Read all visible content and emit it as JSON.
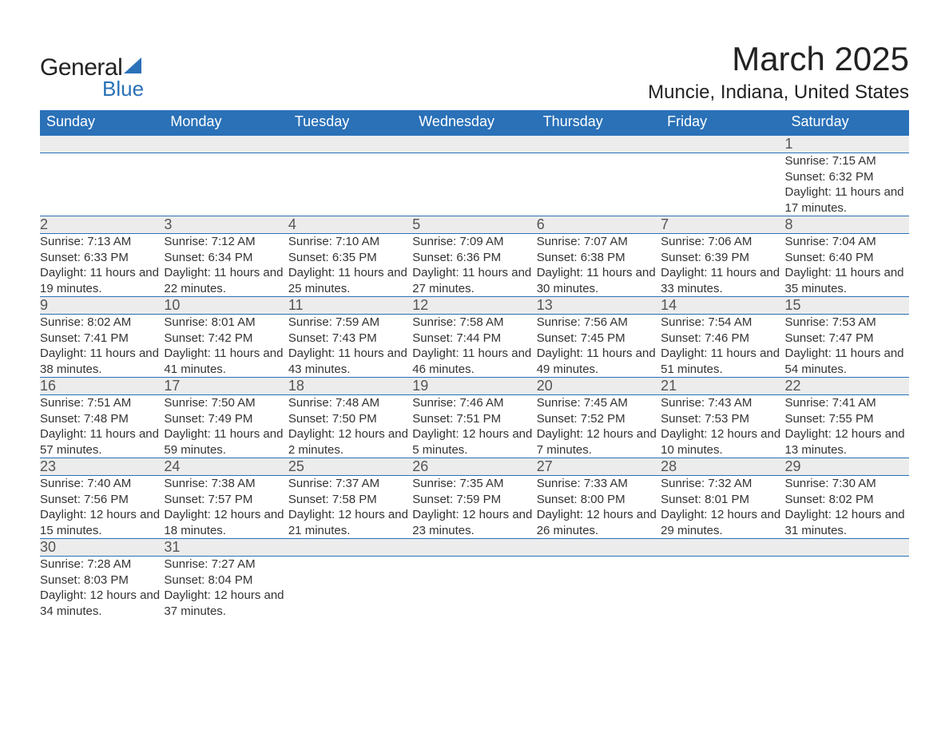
{
  "logo": {
    "word1": "General",
    "word2": "Blue",
    "sail_color": "#2a71b8"
  },
  "title": "March 2025",
  "location": "Muncie, Indiana, United States",
  "colors": {
    "header_bg": "#2a71b8",
    "header_text": "#ffffff",
    "daynum_bg": "#ececec",
    "border": "#2a71b8",
    "text": "#333333",
    "page_bg": "#ffffff"
  },
  "fonts": {
    "title_size_pt": 32,
    "location_size_pt": 18,
    "header_size_pt": 14,
    "daynum_size_pt": 14,
    "detail_size_pt": 11
  },
  "layout": {
    "columns": 7,
    "start_day_index": 6,
    "days_in_month": 31
  },
  "day_headers": [
    "Sunday",
    "Monday",
    "Tuesday",
    "Wednesday",
    "Thursday",
    "Friday",
    "Saturday"
  ],
  "weeks": [
    [
      null,
      null,
      null,
      null,
      null,
      null,
      {
        "n": "1",
        "sunrise": "7:15 AM",
        "sunset": "6:32 PM",
        "daylight": "11 hours and 17 minutes."
      }
    ],
    [
      {
        "n": "2",
        "sunrise": "7:13 AM",
        "sunset": "6:33 PM",
        "daylight": "11 hours and 19 minutes."
      },
      {
        "n": "3",
        "sunrise": "7:12 AM",
        "sunset": "6:34 PM",
        "daylight": "11 hours and 22 minutes."
      },
      {
        "n": "4",
        "sunrise": "7:10 AM",
        "sunset": "6:35 PM",
        "daylight": "11 hours and 25 minutes."
      },
      {
        "n": "5",
        "sunrise": "7:09 AM",
        "sunset": "6:36 PM",
        "daylight": "11 hours and 27 minutes."
      },
      {
        "n": "6",
        "sunrise": "7:07 AM",
        "sunset": "6:38 PM",
        "daylight": "11 hours and 30 minutes."
      },
      {
        "n": "7",
        "sunrise": "7:06 AM",
        "sunset": "6:39 PM",
        "daylight": "11 hours and 33 minutes."
      },
      {
        "n": "8",
        "sunrise": "7:04 AM",
        "sunset": "6:40 PM",
        "daylight": "11 hours and 35 minutes."
      }
    ],
    [
      {
        "n": "9",
        "sunrise": "8:02 AM",
        "sunset": "7:41 PM",
        "daylight": "11 hours and 38 minutes."
      },
      {
        "n": "10",
        "sunrise": "8:01 AM",
        "sunset": "7:42 PM",
        "daylight": "11 hours and 41 minutes."
      },
      {
        "n": "11",
        "sunrise": "7:59 AM",
        "sunset": "7:43 PM",
        "daylight": "11 hours and 43 minutes."
      },
      {
        "n": "12",
        "sunrise": "7:58 AM",
        "sunset": "7:44 PM",
        "daylight": "11 hours and 46 minutes."
      },
      {
        "n": "13",
        "sunrise": "7:56 AM",
        "sunset": "7:45 PM",
        "daylight": "11 hours and 49 minutes."
      },
      {
        "n": "14",
        "sunrise": "7:54 AM",
        "sunset": "7:46 PM",
        "daylight": "11 hours and 51 minutes."
      },
      {
        "n": "15",
        "sunrise": "7:53 AM",
        "sunset": "7:47 PM",
        "daylight": "11 hours and 54 minutes."
      }
    ],
    [
      {
        "n": "16",
        "sunrise": "7:51 AM",
        "sunset": "7:48 PM",
        "daylight": "11 hours and 57 minutes."
      },
      {
        "n": "17",
        "sunrise": "7:50 AM",
        "sunset": "7:49 PM",
        "daylight": "11 hours and 59 minutes."
      },
      {
        "n": "18",
        "sunrise": "7:48 AM",
        "sunset": "7:50 PM",
        "daylight": "12 hours and 2 minutes."
      },
      {
        "n": "19",
        "sunrise": "7:46 AM",
        "sunset": "7:51 PM",
        "daylight": "12 hours and 5 minutes."
      },
      {
        "n": "20",
        "sunrise": "7:45 AM",
        "sunset": "7:52 PM",
        "daylight": "12 hours and 7 minutes."
      },
      {
        "n": "21",
        "sunrise": "7:43 AM",
        "sunset": "7:53 PM",
        "daylight": "12 hours and 10 minutes."
      },
      {
        "n": "22",
        "sunrise": "7:41 AM",
        "sunset": "7:55 PM",
        "daylight": "12 hours and 13 minutes."
      }
    ],
    [
      {
        "n": "23",
        "sunrise": "7:40 AM",
        "sunset": "7:56 PM",
        "daylight": "12 hours and 15 minutes."
      },
      {
        "n": "24",
        "sunrise": "7:38 AM",
        "sunset": "7:57 PM",
        "daylight": "12 hours and 18 minutes."
      },
      {
        "n": "25",
        "sunrise": "7:37 AM",
        "sunset": "7:58 PM",
        "daylight": "12 hours and 21 minutes."
      },
      {
        "n": "26",
        "sunrise": "7:35 AM",
        "sunset": "7:59 PM",
        "daylight": "12 hours and 23 minutes."
      },
      {
        "n": "27",
        "sunrise": "7:33 AM",
        "sunset": "8:00 PM",
        "daylight": "12 hours and 26 minutes."
      },
      {
        "n": "28",
        "sunrise": "7:32 AM",
        "sunset": "8:01 PM",
        "daylight": "12 hours and 29 minutes."
      },
      {
        "n": "29",
        "sunrise": "7:30 AM",
        "sunset": "8:02 PM",
        "daylight": "12 hours and 31 minutes."
      }
    ],
    [
      {
        "n": "30",
        "sunrise": "7:28 AM",
        "sunset": "8:03 PM",
        "daylight": "12 hours and 34 minutes."
      },
      {
        "n": "31",
        "sunrise": "7:27 AM",
        "sunset": "8:04 PM",
        "daylight": "12 hours and 37 minutes."
      },
      null,
      null,
      null,
      null,
      null
    ]
  ],
  "labels": {
    "sunrise": "Sunrise: ",
    "sunset": "Sunset: ",
    "daylight": "Daylight: "
  }
}
